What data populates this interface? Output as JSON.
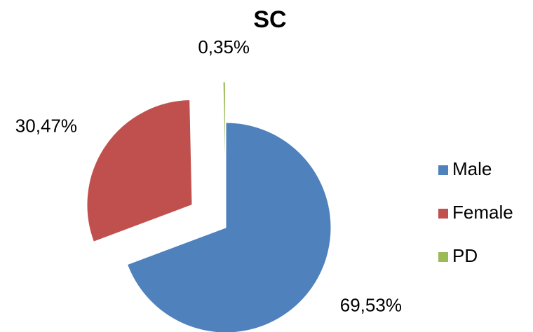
{
  "chart_data": {
    "type": "pie",
    "title": "SC",
    "categories": [
      "Male",
      "Female",
      "PD"
    ],
    "values": [
      69.53,
      30.47,
      0.35
    ],
    "value_labels": [
      "69,53%",
      "30,47%",
      "0,35%"
    ],
    "colors": [
      "#4f81bd",
      "#c0504d",
      "#9bbb59"
    ],
    "legend": "right"
  }
}
